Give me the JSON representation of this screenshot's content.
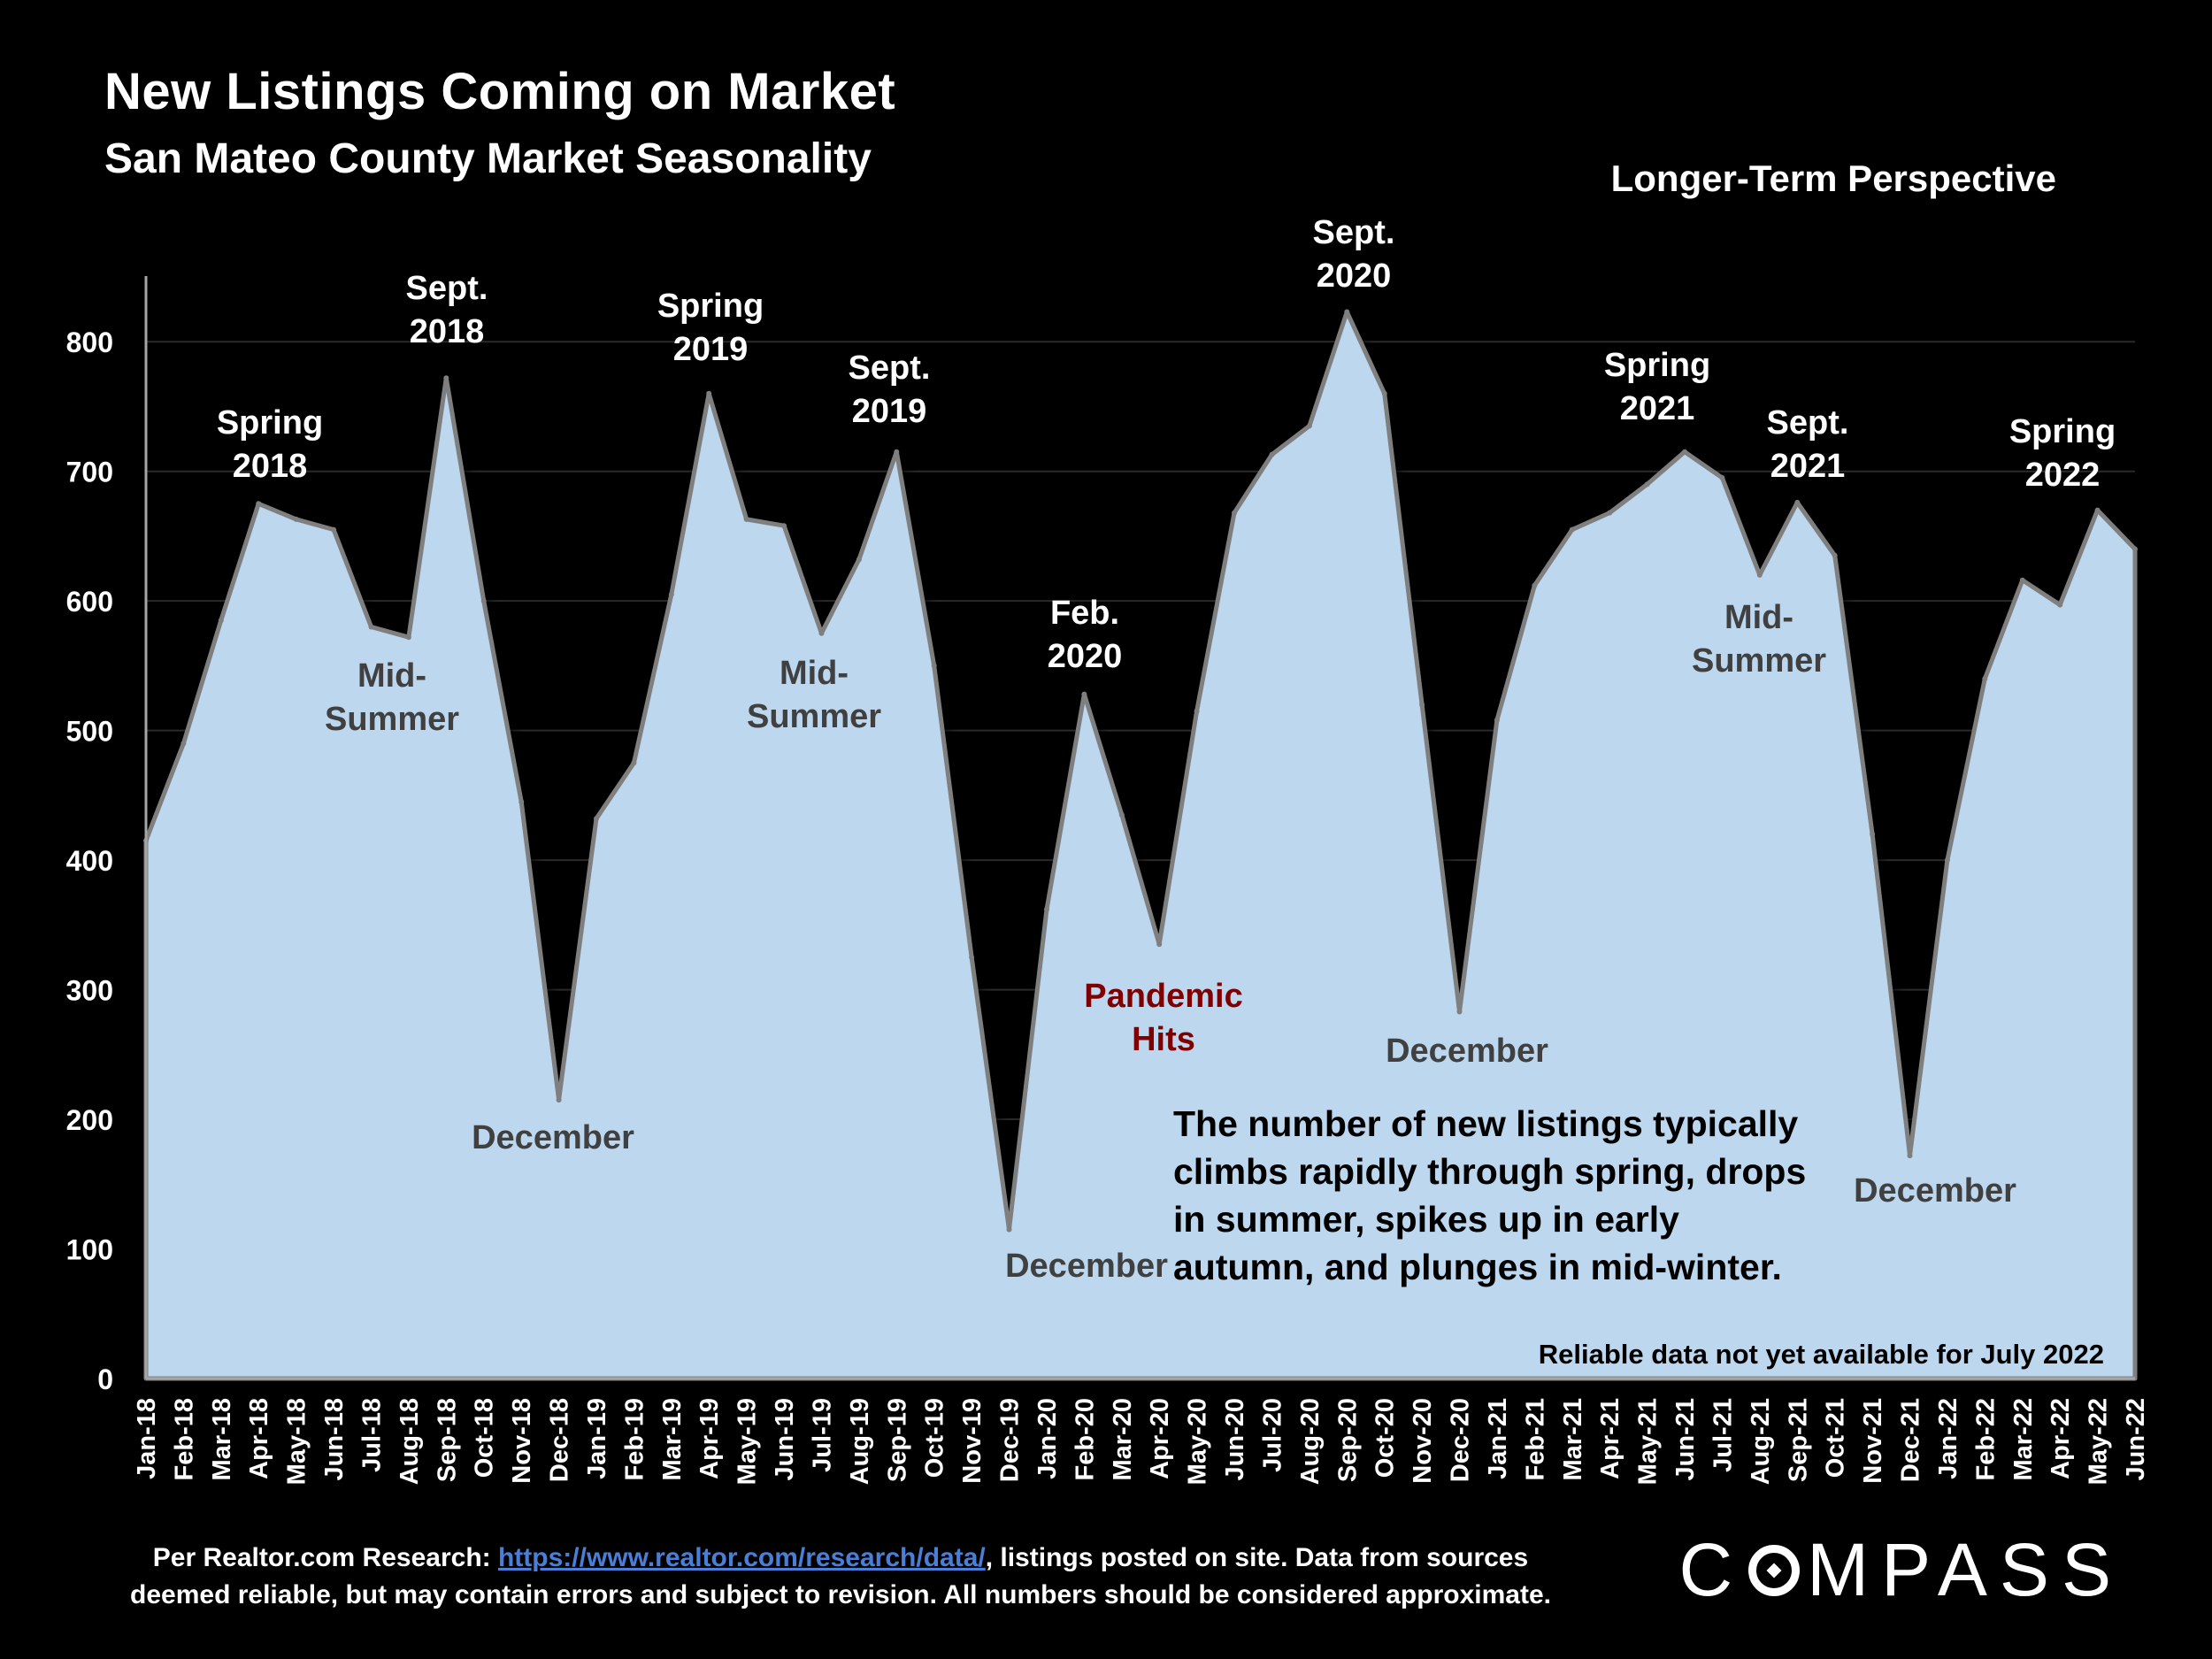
{
  "header": {
    "title": "New Listings Coming on Market",
    "subtitle": "San Mateo County Market Seasonality",
    "perspective": "Longer-Term Perspective"
  },
  "footer": {
    "prefix": "Per Realtor.com Research: ",
    "link": "https://www.realtor.com/research/data/",
    "line1_suffix": ", listings posted on site. Data from sources",
    "line2": "deemed reliable, but may contain errors and subject to revision. All numbers should be considered approximate."
  },
  "logo": {
    "before": "C",
    "after": "MPASS"
  },
  "chart_data": {
    "type": "area",
    "title": "New Listings Coming on Market",
    "subtitle": "San Mateo County Market Seasonality",
    "xlabel": "",
    "ylabel": "",
    "ylim": [
      0,
      850
    ],
    "yticks": [
      0,
      100,
      200,
      300,
      400,
      500,
      600,
      700,
      800
    ],
    "grid": true,
    "fill_color": "#bdd7ee",
    "line_color": "#7f7f7f",
    "categories": [
      "Jan-18",
      "Feb-18",
      "Mar-18",
      "Apr-18",
      "May-18",
      "Jun-18",
      "Jul-18",
      "Aug-18",
      "Sep-18",
      "Oct-18",
      "Nov-18",
      "Dec-18",
      "Jan-19",
      "Feb-19",
      "Mar-19",
      "Apr-19",
      "May-19",
      "Jun-19",
      "Jul-19",
      "Aug-19",
      "Sep-19",
      "Oct-19",
      "Nov-19",
      "Dec-19",
      "Jan-20",
      "Feb-20",
      "Mar-20",
      "Apr-20",
      "May-20",
      "Jun-20",
      "Jul-20",
      "Aug-20",
      "Sep-20",
      "Oct-20",
      "Nov-20",
      "Dec-20",
      "Jan-21",
      "Feb-21",
      "Mar-21",
      "Apr-21",
      "May-21",
      "Jun-21",
      "Jul-21",
      "Aug-21",
      "Sep-21",
      "Oct-21",
      "Nov-21",
      "Dec-21",
      "Jan-22",
      "Feb-22",
      "Mar-22",
      "Apr-22",
      "May-22",
      "Jun-22"
    ],
    "values": [
      415,
      490,
      585,
      675,
      663,
      655,
      580,
      572,
      772,
      600,
      445,
      215,
      432,
      475,
      605,
      760,
      663,
      658,
      575,
      632,
      715,
      550,
      325,
      115,
      362,
      528,
      435,
      335,
      515,
      668,
      713,
      735,
      823,
      760,
      520,
      283,
      508,
      612,
      655,
      668,
      690,
      715,
      695,
      620,
      676,
      635,
      420,
      172,
      400,
      540,
      616,
      597,
      670,
      640
    ],
    "annotations": [
      {
        "text": "Spring 2018",
        "lines": [
          "Spring",
          "2018"
        ],
        "color": "#ffffff"
      },
      {
        "text": "Sept. 2018",
        "lines": [
          "Sept.",
          "2018"
        ],
        "color": "#ffffff"
      },
      {
        "text": "Mid-Summer",
        "lines": [
          "Mid-",
          "Summer"
        ],
        "color": "#404040"
      },
      {
        "text": "December",
        "lines": [
          "December"
        ],
        "color": "#404040"
      },
      {
        "text": "Spring 2019",
        "lines": [
          "Spring",
          "2019"
        ],
        "color": "#ffffff"
      },
      {
        "text": "Sept. 2019",
        "lines": [
          "Sept.",
          "2019"
        ],
        "color": "#ffffff"
      },
      {
        "text": "Mid-Summer",
        "lines": [
          "Mid-",
          "Summer"
        ],
        "color": "#404040"
      },
      {
        "text": "December",
        "lines": [
          "December"
        ],
        "color": "#404040"
      },
      {
        "text": "Feb. 2020",
        "lines": [
          "Feb.",
          "2020"
        ],
        "color": "#ffffff"
      },
      {
        "text": "Pandemic Hits",
        "lines": [
          "Pandemic",
          "Hits"
        ],
        "color": "#7f0000"
      },
      {
        "text": "Sept. 2020",
        "lines": [
          "Sept.",
          "2020"
        ],
        "color": "#ffffff"
      },
      {
        "text": "December",
        "lines": [
          "December"
        ],
        "color": "#404040"
      },
      {
        "text": "Spring 2021",
        "lines": [
          "Spring",
          "2021"
        ],
        "color": "#ffffff"
      },
      {
        "text": "Sept. 2021",
        "lines": [
          "Sept.",
          "2021"
        ],
        "color": "#ffffff"
      },
      {
        "text": "Mid-Summer",
        "lines": [
          "Mid-",
          "Summer"
        ],
        "color": "#404040"
      },
      {
        "text": "December",
        "lines": [
          "December"
        ],
        "color": "#404040"
      },
      {
        "text": "Spring 2022",
        "lines": [
          "Spring",
          "2022"
        ],
        "color": "#ffffff"
      }
    ],
    "description_lines": [
      "The number of new listings typically",
      "climbs rapidly through spring, drops",
      "in summer, spikes up in early",
      "autumn, and plunges in mid-winter."
    ],
    "note": "Reliable data not yet available for July 2022"
  }
}
